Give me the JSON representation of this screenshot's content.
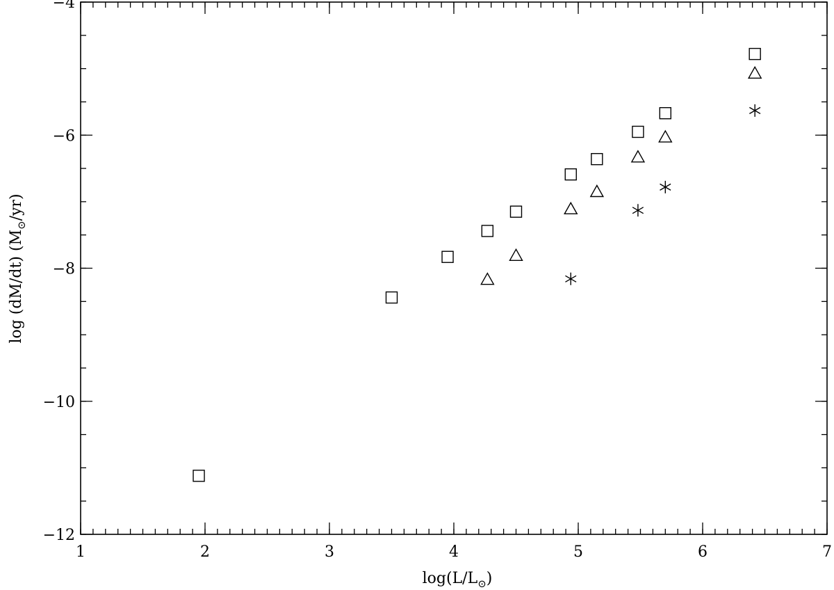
{
  "chart_data": {
    "type": "scatter",
    "xlabel": {
      "main": "log(L/L",
      "sub": "⊙",
      "close": ")"
    },
    "ylabel": {
      "main": "log (dM/dt) (M",
      "sub": "⊙",
      "close": "/yr)"
    },
    "xlim": [
      1,
      7
    ],
    "ylim": [
      -12,
      -4
    ],
    "xticks": [
      1,
      2,
      3,
      4,
      5,
      6,
      7
    ],
    "xtick_labels": [
      "1",
      "2",
      "3",
      "4",
      "5",
      "6",
      "7"
    ],
    "yticks": [
      -12,
      -10,
      -8,
      -6,
      -4
    ],
    "ytick_labels": [
      "−12",
      "−10",
      "−8",
      "−6",
      "−4"
    ],
    "x_minor_step": 0.1,
    "y_minor_step": 0.5,
    "grid": false,
    "series": [
      {
        "marker": "square",
        "points": [
          [
            1.95,
            -11.12
          ],
          [
            3.5,
            -8.44
          ],
          [
            3.95,
            -7.83
          ],
          [
            4.27,
            -7.44
          ],
          [
            4.5,
            -7.15
          ],
          [
            4.94,
            -6.59
          ],
          [
            5.15,
            -6.36
          ],
          [
            5.48,
            -5.95
          ],
          [
            5.7,
            -5.67
          ],
          [
            6.42,
            -4.78
          ]
        ]
      },
      {
        "marker": "triangle",
        "points": [
          [
            4.27,
            -8.18
          ],
          [
            4.5,
            -7.82
          ],
          [
            4.94,
            -7.12
          ],
          [
            5.15,
            -6.86
          ],
          [
            5.48,
            -6.34
          ],
          [
            5.7,
            -6.04
          ],
          [
            6.42,
            -5.08
          ]
        ]
      },
      {
        "marker": "asterisk",
        "points": [
          [
            4.94,
            -8.16
          ],
          [
            5.48,
            -7.13
          ],
          [
            5.7,
            -6.78
          ],
          [
            6.42,
            -5.63
          ]
        ]
      }
    ]
  }
}
